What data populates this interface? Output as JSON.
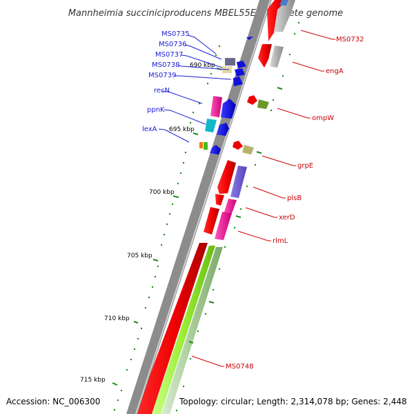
{
  "title": "Mannheimia succiniciproducens MBEL55E, complete genome",
  "footer": {
    "accession": "Accession: NC_006300",
    "topology": "Topology: circular; Length: 2,314,078 bp; Genes: 2,448"
  },
  "ticks": [
    "690 kbp",
    "695 kbp",
    "700 kbp",
    "705 kbp",
    "710 kbp",
    "715 kbp"
  ],
  "genes_minus": [
    "MS0735",
    "MS0736",
    "MS0737",
    "MS0738",
    "MS0739",
    "recN",
    "ppnK",
    "lexA"
  ],
  "genes_plus": [
    "MS0732",
    "engA",
    "ompW",
    "grpE",
    "plsB",
    "xerD",
    "rlmL",
    "MS0748"
  ],
  "colors": {
    "backbone": "#808080",
    "cds_strand": "#ee0000",
    "rna_strand": "#99ff33",
    "label_minus": "#1a1ad6",
    "label_plus": "#cc0000",
    "tick": "#1a8a1a"
  }
}
